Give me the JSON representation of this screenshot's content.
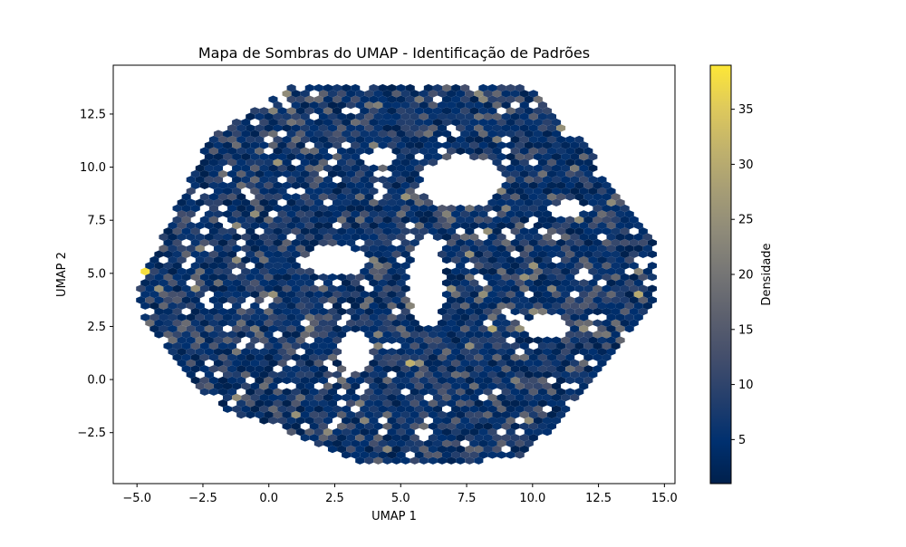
{
  "chart_data": {
    "type": "hexbin",
    "title": "Mapa de Sombras do UMAP - Identificação de Padrões",
    "xlabel": "UMAP 1",
    "ylabel": "UMAP 2",
    "xlim": [
      -5.9,
      15.4
    ],
    "ylim": [
      -4.9,
      14.8
    ],
    "x_ticks": [
      -5.0,
      -2.5,
      0.0,
      2.5,
      5.0,
      7.5,
      10.0,
      12.5,
      15.0
    ],
    "x_tick_labels": [
      "−5.0",
      "−2.5",
      "0.0",
      "2.5",
      "5.0",
      "7.5",
      "10.0",
      "12.5",
      "15.0"
    ],
    "y_ticks": [
      -2.5,
      0.0,
      2.5,
      5.0,
      7.5,
      10.0,
      12.5
    ],
    "y_tick_labels": [
      "−2.5",
      "0.0",
      "2.5",
      "5.0",
      "7.5",
      "10.0",
      "12.5"
    ],
    "colormap": "cividis",
    "colorbar": {
      "label": "Densidade",
      "range": [
        1,
        39
      ],
      "ticks": [
        5,
        10,
        15,
        20,
        25,
        30,
        35
      ],
      "tick_labels": [
        "5",
        "10",
        "15",
        "20",
        "25",
        "30",
        "35"
      ]
    },
    "grid": false,
    "extent_outline": [
      [
        -5.0,
        4.3
      ],
      [
        -2.2,
        11.5
      ],
      [
        1.0,
        13.9
      ],
      [
        9.8,
        13.9
      ],
      [
        12.0,
        11.0
      ],
      [
        14.6,
        6.4
      ],
      [
        14.6,
        3.8
      ],
      [
        11.5,
        -1.5
      ],
      [
        9.5,
        -3.8
      ],
      [
        3.5,
        -3.9
      ],
      [
        -2.0,
        -1.2
      ],
      [
        -4.6,
        2.4
      ]
    ],
    "empty_regions": [
      {
        "center": [
          2.5,
          5.6
        ],
        "radii": [
          1.2,
          0.7
        ]
      },
      {
        "center": [
          6.0,
          4.6
        ],
        "radii": [
          0.7,
          2.2
        ]
      },
      {
        "center": [
          7.3,
          9.3
        ],
        "radii": [
          1.6,
          1.2
        ]
      },
      {
        "center": [
          4.2,
          10.4
        ],
        "radii": [
          0.7,
          0.4
        ]
      },
      {
        "center": [
          3.3,
          1.3
        ],
        "radii": [
          0.6,
          1.0
        ]
      },
      {
        "center": [
          10.5,
          2.5
        ],
        "radii": [
          0.8,
          0.6
        ]
      },
      {
        "center": [
          11.3,
          8.0
        ],
        "radii": [
          0.6,
          0.4
        ]
      }
    ],
    "hotspots": [
      {
        "x": -4.8,
        "y": 5.1,
        "value": 38
      },
      {
        "x": 14.0,
        "y": 4.0,
        "value": 30
      },
      {
        "x": 7.0,
        "y": 10.3,
        "value": 28
      },
      {
        "x": 8.4,
        "y": 2.4,
        "value": 29
      },
      {
        "x": 5.3,
        "y": 0.8,
        "value": 31
      },
      {
        "x": 2.5,
        "y": 0.5,
        "value": 27
      },
      {
        "x": 0.1,
        "y": -3.1,
        "value": 30
      },
      {
        "x": 0.2,
        "y": 4.0,
        "value": 25
      }
    ]
  }
}
